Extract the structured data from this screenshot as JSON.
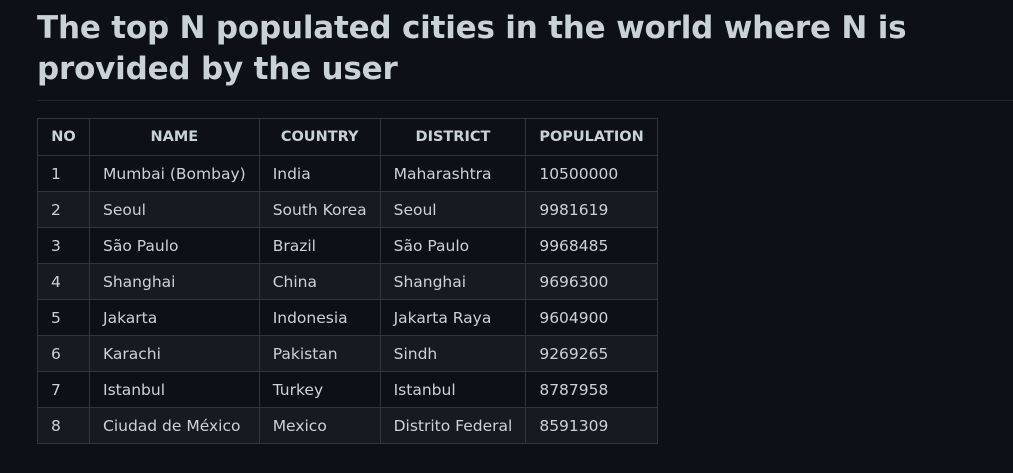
{
  "page": {
    "title": "The top N populated cities in the world where N is provided by the user"
  },
  "table": {
    "headers": {
      "no": "NO",
      "name": "NAME",
      "country": "COUNTRY",
      "district": "DISTRICT",
      "population": "POPULATION"
    },
    "rows": [
      {
        "no": "1",
        "name": "Mumbai (Bombay)",
        "country": "India",
        "district": "Maharashtra",
        "population": "10500000"
      },
      {
        "no": "2",
        "name": "Seoul",
        "country": "South Korea",
        "district": "Seoul",
        "population": "9981619"
      },
      {
        "no": "3",
        "name": "São Paulo",
        "country": "Brazil",
        "district": "São Paulo",
        "population": "9968485"
      },
      {
        "no": "4",
        "name": "Shanghai",
        "country": "China",
        "district": "Shanghai",
        "population": "9696300"
      },
      {
        "no": "5",
        "name": "Jakarta",
        "country": "Indonesia",
        "district": "Jakarta Raya",
        "population": "9604900"
      },
      {
        "no": "6",
        "name": "Karachi",
        "country": "Pakistan",
        "district": "Sindh",
        "population": "9269265"
      },
      {
        "no": "7",
        "name": "Istanbul",
        "country": "Turkey",
        "district": "Istanbul",
        "population": "8787958"
      },
      {
        "no": "8",
        "name": "Ciudad de México",
        "country": "Mexico",
        "district": "Distrito Federal",
        "population": "8591309"
      }
    ]
  }
}
